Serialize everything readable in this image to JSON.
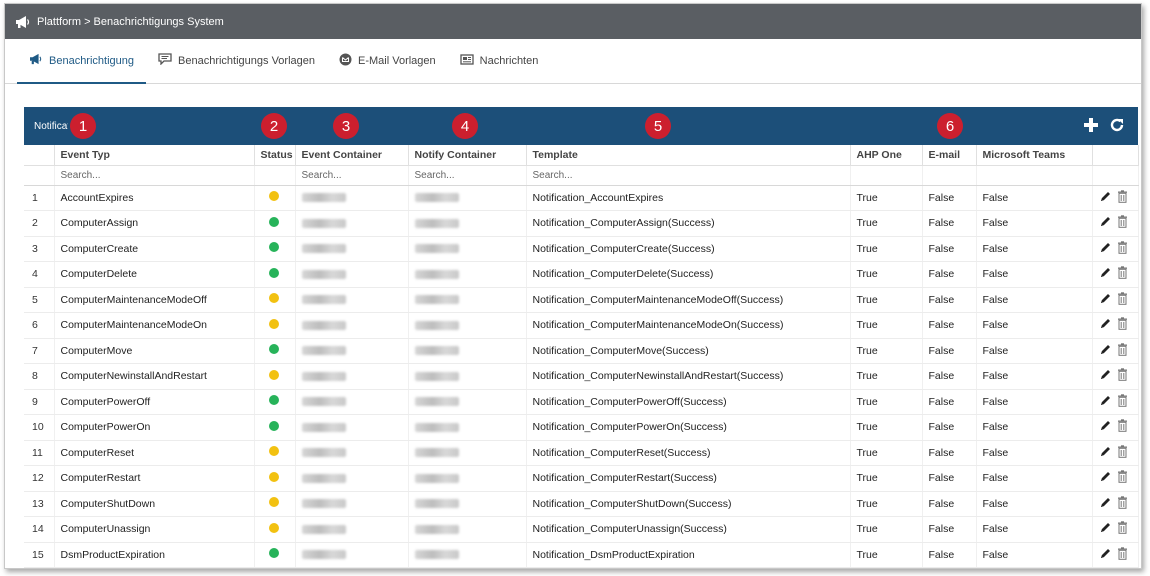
{
  "titlebar": {
    "title": "Plattform > Benachrichtigungs System",
    "icon": "megaphone-icon"
  },
  "tabs": [
    {
      "label": "Benachrichtigung",
      "icon": "megaphone-icon",
      "active": true
    },
    {
      "label": "Benachrichtigungs Vorlagen",
      "icon": "speech-bubble-icon",
      "active": false
    },
    {
      "label": "E-Mail Vorlagen",
      "icon": "mail-circle-icon",
      "active": false
    },
    {
      "label": "Nachrichten",
      "icon": "newspaper-icon",
      "active": false
    }
  ],
  "panel": {
    "title": "Notifications",
    "badges": [
      "1",
      "2",
      "3",
      "4",
      "5",
      "6"
    ],
    "actions": [
      "plus-icon",
      "refresh-icon"
    ]
  },
  "table": {
    "columns": [
      "",
      "Event Typ",
      "Status",
      "Event Container",
      "Notify Container",
      "Template",
      "AHP One",
      "E-mail",
      "Microsoft Teams",
      ""
    ],
    "search_placeholder": "Search...",
    "status_colors": {
      "yellow": "#f2c111",
      "green": "#27b35a"
    },
    "rows": [
      {
        "num": "1",
        "event": "AccountExpires",
        "status": "yellow",
        "template": "Notification_AccountExpires",
        "ahp": "True",
        "email": "False",
        "teams": "False"
      },
      {
        "num": "2",
        "event": "ComputerAssign",
        "status": "green",
        "template": "Notification_ComputerAssign(Success)",
        "ahp": "True",
        "email": "False",
        "teams": "False"
      },
      {
        "num": "3",
        "event": "ComputerCreate",
        "status": "green",
        "template": "Notification_ComputerCreate(Success)",
        "ahp": "True",
        "email": "False",
        "teams": "False"
      },
      {
        "num": "4",
        "event": "ComputerDelete",
        "status": "green",
        "template": "Notification_ComputerDelete(Success)",
        "ahp": "True",
        "email": "False",
        "teams": "False"
      },
      {
        "num": "5",
        "event": "ComputerMaintenanceModeOff",
        "status": "yellow",
        "template": "Notification_ComputerMaintenanceModeOff(Success)",
        "ahp": "True",
        "email": "False",
        "teams": "False"
      },
      {
        "num": "6",
        "event": "ComputerMaintenanceModeOn",
        "status": "yellow",
        "template": "Notification_ComputerMaintenanceModeOn(Success)",
        "ahp": "True",
        "email": "False",
        "teams": "False"
      },
      {
        "num": "7",
        "event": "ComputerMove",
        "status": "green",
        "template": "Notification_ComputerMove(Success)",
        "ahp": "True",
        "email": "False",
        "teams": "False"
      },
      {
        "num": "8",
        "event": "ComputerNewinstallAndRestart",
        "status": "yellow",
        "template": "Notification_ComputerNewinstallAndRestart(Success)",
        "ahp": "True",
        "email": "False",
        "teams": "False"
      },
      {
        "num": "9",
        "event": "ComputerPowerOff",
        "status": "green",
        "template": "Notification_ComputerPowerOff(Success)",
        "ahp": "True",
        "email": "False",
        "teams": "False"
      },
      {
        "num": "10",
        "event": "ComputerPowerOn",
        "status": "green",
        "template": "Notification_ComputerPowerOn(Success)",
        "ahp": "True",
        "email": "False",
        "teams": "False"
      },
      {
        "num": "11",
        "event": "ComputerReset",
        "status": "yellow",
        "template": "Notification_ComputerReset(Success)",
        "ahp": "True",
        "email": "False",
        "teams": "False"
      },
      {
        "num": "12",
        "event": "ComputerRestart",
        "status": "yellow",
        "template": "Notification_ComputerRestart(Success)",
        "ahp": "True",
        "email": "False",
        "teams": "False"
      },
      {
        "num": "13",
        "event": "ComputerShutDown",
        "status": "yellow",
        "template": "Notification_ComputerShutDown(Success)",
        "ahp": "True",
        "email": "False",
        "teams": "False"
      },
      {
        "num": "14",
        "event": "ComputerUnassign",
        "status": "yellow",
        "template": "Notification_ComputerUnassign(Success)",
        "ahp": "True",
        "email": "False",
        "teams": "False"
      },
      {
        "num": "15",
        "event": "DsmProductExpiration",
        "status": "green",
        "template": "Notification_DsmProductExpiration",
        "ahp": "True",
        "email": "False",
        "teams": "False"
      }
    ],
    "row_actions": [
      "pencil-icon",
      "trash-icon"
    ]
  }
}
